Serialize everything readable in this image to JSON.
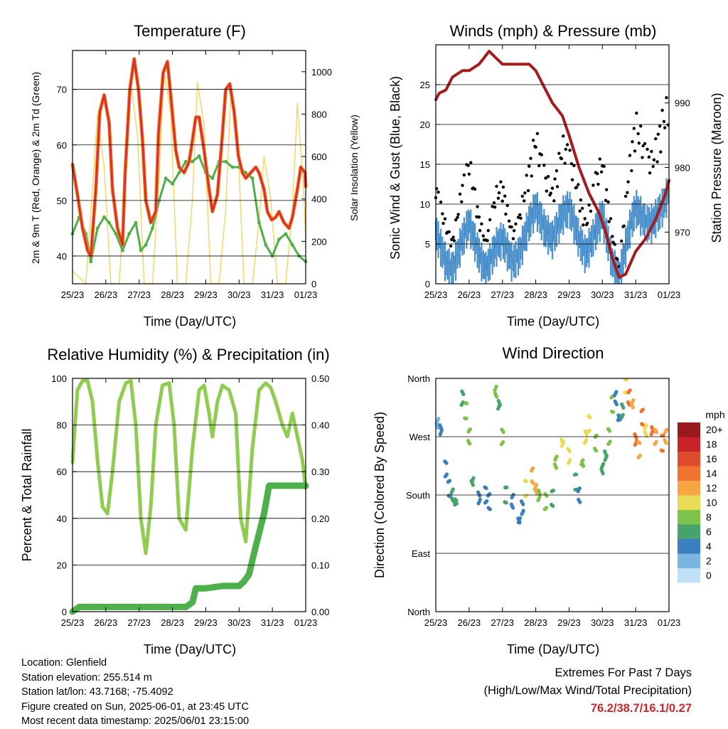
{
  "colors": {
    "temp_2m": "#d9322b",
    "temp_9m": "#f08a2a",
    "dewpoint": "#4fae48",
    "insolation": "#f5d76a",
    "wind": "#4a90cc",
    "gust": "#000000",
    "pressure": "#a51c1c",
    "rh": "#8fcc4f",
    "precip": "#4db04a",
    "extremes_text": "#c8282b"
  },
  "panels": {
    "temperature": {
      "title": "Temperature (F)",
      "ylabel_left": "2m & 9m T (Red, Orange) & 2m Td (Green)",
      "ylabel_right": "Solar Insolation (Yellow)",
      "xlabel": "Time (Day/UTC)"
    },
    "winds": {
      "title": "Winds (mph) & Pressure (mb)",
      "ylabel_left": "Sonic Wind & Gust (Blue, Black)",
      "ylabel_right": "Station Pressure (Maroon)",
      "xlabel": "Time (Day/UTC)"
    },
    "humidity": {
      "title": "Relative Humidity (%) & Precipitation (in)",
      "ylabel_left": "Percent & Total Rainfall",
      "xlabel": "Time (Day/UTC)"
    },
    "direction": {
      "title": "Wind Direction",
      "ylabel_left": "Direction (Colored By Speed)",
      "xlabel": "Time (Day/UTC)",
      "legend_unit": "mph"
    }
  },
  "footer": {
    "location": "Location: Glenfield",
    "elevation": "Station elevation: 255.514 m",
    "latlon": "Station lat/lon: 43.7168; -75.4092",
    "created": "Figure created on Sun, 2025-06-01, at 23:45 UTC",
    "latest": "Most recent data timestamp: 2025/06/01 23:15:00"
  },
  "extremes": {
    "heading": "Extremes For Past 7 Days",
    "subheading": "(High/Low/Max Wind/Total Precipitation)",
    "values": "76.2/38.7/16.1/0.27"
  },
  "chart_data": [
    {
      "type": "line",
      "name": "temperature",
      "x_ticks": [
        "25/23",
        "26/23",
        "27/23",
        "28/23",
        "29/23",
        "30/23",
        "31/23",
        "01/23"
      ],
      "xlim_days": [
        0,
        7
      ],
      "ylim": [
        35,
        77
      ],
      "y_ticks": [
        40,
        50,
        60,
        70
      ],
      "y2lim": [
        0,
        1100
      ],
      "y2_ticks": [
        0,
        200,
        400,
        600,
        800,
        1000
      ],
      "grid": true,
      "series": [
        {
          "name": "2m T",
          "x": [
            0,
            0.15,
            0.3,
            0.45,
            0.55,
            0.7,
            0.82,
            0.95,
            1.1,
            1.2,
            1.35,
            1.5,
            1.58,
            1.72,
            1.85,
            1.98,
            2.1,
            2.2,
            2.35,
            2.5,
            2.58,
            2.72,
            2.85,
            2.98,
            3.1,
            3.2,
            3.35,
            3.5,
            3.58,
            3.7,
            3.8,
            3.95,
            4.1,
            4.2,
            4.35,
            4.5,
            4.6,
            4.72,
            4.85,
            4.98,
            5.1,
            5.2,
            5.35,
            5.5,
            5.6,
            5.75,
            5.85,
            5.98,
            6.1,
            6.2,
            6.35,
            6.5,
            6.6,
            6.75,
            6.85,
            6.98,
            7
          ],
          "values": [
            56.5,
            51,
            45,
            41,
            40,
            52,
            66,
            69,
            64,
            52,
            45,
            42,
            55,
            70,
            75.5,
            70,
            61,
            50,
            46,
            48,
            62,
            73,
            75,
            67,
            59,
            56,
            55,
            57,
            60,
            65,
            65,
            59,
            52,
            48,
            51,
            62,
            70,
            71,
            66,
            58,
            55,
            54,
            55,
            56,
            55,
            52,
            48,
            46.5,
            47,
            48,
            46,
            45,
            47,
            52,
            56,
            55,
            52.5
          ]
        },
        {
          "name": "2m Td",
          "x": [
            0,
            0.2,
            0.4,
            0.55,
            0.75,
            0.95,
            1.1,
            1.3,
            1.5,
            1.7,
            1.9,
            2.05,
            2.2,
            2.4,
            2.6,
            2.8,
            3.0,
            3.2,
            3.4,
            3.6,
            3.8,
            4.0,
            4.2,
            4.4,
            4.6,
            4.8,
            5.0,
            5.2,
            5.4,
            5.6,
            5.8,
            6.0,
            6.2,
            6.4,
            6.6,
            6.8,
            7
          ],
          "values": [
            44,
            47,
            44,
            39,
            45,
            47,
            46,
            44,
            41,
            44,
            46,
            41,
            42,
            45,
            50,
            54,
            53,
            55,
            57,
            57,
            58,
            55,
            54,
            57,
            57,
            56,
            56,
            55,
            54,
            46,
            42,
            40,
            43,
            44,
            42,
            40,
            39
          ]
        },
        {
          "name": "Solar Insolation",
          "x": [
            0,
            0.4,
            0.6,
            0.75,
            0.95,
            1.15,
            1.4,
            1.6,
            1.75,
            1.95,
            2.15,
            2.4,
            2.6,
            2.75,
            2.95,
            3.15,
            3.4,
            3.6,
            3.75,
            3.95,
            4.15,
            4.4,
            4.6,
            4.75,
            4.95,
            5.15,
            5.4,
            5.6,
            5.75,
            5.95,
            6.15,
            6.4,
            6.6,
            6.75,
            6.95,
            7
          ],
          "values": [
            60,
            0,
            450,
            800,
            550,
            0,
            0,
            500,
            950,
            700,
            0,
            0,
            500,
            1000,
            800,
            0,
            0,
            400,
            950,
            750,
            0,
            0,
            350,
            900,
            700,
            0,
            0,
            300,
            600,
            400,
            0,
            0,
            350,
            850,
            400,
            200
          ]
        }
      ]
    },
    {
      "type": "line",
      "name": "winds",
      "x_ticks": [
        "25/23",
        "26/23",
        "27/23",
        "28/23",
        "29/23",
        "30/23",
        "31/23",
        "01/23"
      ],
      "xlim_days": [
        0,
        7
      ],
      "ylim": [
        0,
        30
      ],
      "y_ticks": [
        0,
        5,
        10,
        15,
        20,
        25
      ],
      "y2lim": [
        962,
        999
      ],
      "y2_ticks": [
        970,
        980,
        990
      ],
      "grid": true,
      "series": [
        {
          "name": "Sonic Wind",
          "x": [
            0,
            0.3,
            0.5,
            0.8,
            1.0,
            1.3,
            1.5,
            1.8,
            2.0,
            2.3,
            2.5,
            2.8,
            3.0,
            3.3,
            3.5,
            3.8,
            4.0,
            4.3,
            4.5,
            4.8,
            5.0,
            5.3,
            5.5,
            5.8,
            6.0,
            6.3,
            6.5,
            6.8,
            7
          ],
          "values": [
            7,
            3,
            2,
            6,
            8,
            4,
            2,
            5,
            6,
            3,
            4,
            8,
            10,
            7,
            6,
            9,
            10,
            6,
            4,
            7,
            9,
            3,
            1,
            7,
            10,
            8,
            8,
            10,
            12
          ]
        },
        {
          "name": "Gust",
          "x": [
            0,
            0.3,
            0.5,
            0.8,
            1.0,
            1.3,
            1.5,
            1.8,
            2.0,
            2.3,
            2.5,
            2.8,
            3.0,
            3.3,
            3.5,
            3.8,
            4.0,
            4.3,
            4.5,
            4.8,
            5.0,
            5.3,
            5.5,
            5.8,
            6.0,
            6.3,
            6.5,
            6.8,
            7
          ],
          "values": [
            12,
            7,
            5,
            12,
            15,
            8,
            5,
            11,
            12,
            6,
            8,
            14,
            18,
            13,
            11,
            17,
            16,
            11,
            7,
            13,
            15,
            6,
            2,
            14,
            20,
            16,
            15,
            20,
            22
          ]
        },
        {
          "name": "Station Pressure",
          "x": [
            0,
            0.1,
            0.3,
            0.5,
            0.8,
            1.0,
            1.3,
            1.6,
            1.8,
            2.0,
            2.2,
            2.5,
            2.8,
            3.0,
            3.2,
            3.5,
            3.8,
            4.0,
            4.3,
            4.6,
            4.9,
            5.1,
            5.3,
            5.5,
            5.7,
            6.0,
            6.3,
            6.6,
            6.9,
            7
          ],
          "values": [
            990.5,
            991.5,
            992,
            994,
            995,
            995,
            996,
            998,
            997,
            996,
            996,
            996,
            996,
            995,
            993,
            990,
            988,
            985,
            980,
            976,
            973,
            970,
            966,
            963,
            963.5,
            967,
            969,
            972,
            976,
            978
          ]
        }
      ]
    },
    {
      "type": "line",
      "name": "humidity",
      "x_ticks": [
        "25/23",
        "26/23",
        "27/23",
        "28/23",
        "29/23",
        "30/23",
        "31/23",
        "01/23"
      ],
      "xlim_days": [
        0,
        7
      ],
      "ylim": [
        0,
        100
      ],
      "y_ticks": [
        0,
        20,
        40,
        60,
        80,
        100
      ],
      "y2lim": [
        0,
        0.5
      ],
      "y2_ticks": [
        "0.00",
        "0.10",
        "0.20",
        "0.30",
        "0.40",
        "0.50"
      ],
      "grid": true,
      "series": [
        {
          "name": "RH",
          "x": [
            0,
            0.05,
            0.15,
            0.3,
            0.45,
            0.6,
            0.75,
            0.9,
            1.05,
            1.2,
            1.4,
            1.6,
            1.75,
            1.9,
            2.05,
            2.2,
            2.35,
            2.5,
            2.7,
            2.9,
            3.05,
            3.2,
            3.4,
            3.6,
            3.8,
            3.95,
            4.1,
            4.2,
            4.35,
            4.5,
            4.7,
            4.9,
            5.05,
            5.2,
            5.4,
            5.6,
            5.8,
            5.95,
            6.1,
            6.3,
            6.45,
            6.6,
            6.75,
            6.9,
            7
          ],
          "values": [
            64,
            75,
            95,
            99,
            99,
            90,
            65,
            45,
            42,
            60,
            90,
            98,
            99,
            80,
            40,
            25,
            45,
            80,
            97,
            98,
            80,
            40,
            35,
            70,
            95,
            97,
            85,
            75,
            90,
            97,
            95,
            85,
            40,
            30,
            70,
            95,
            98,
            96,
            90,
            80,
            75,
            85,
            75,
            65,
            53
          ]
        },
        {
          "name": "Total Precipitation",
          "x": [
            0,
            0.1,
            0.2,
            1.0,
            2.0,
            3.0,
            3.4,
            3.6,
            3.7,
            4.0,
            4.5,
            5.0,
            5.15,
            5.3,
            5.5,
            5.75,
            5.85,
            5.9,
            6.0,
            7
          ],
          "values": [
            0,
            0.005,
            0.01,
            0.01,
            0.01,
            0.01,
            0.01,
            0.02,
            0.05,
            0.05,
            0.055,
            0.055,
            0.065,
            0.08,
            0.14,
            0.21,
            0.25,
            0.27,
            0.27,
            0.27
          ]
        }
      ]
    },
    {
      "type": "scatter",
      "name": "direction",
      "x_ticks": [
        "25/23",
        "26/23",
        "27/23",
        "28/23",
        "29/23",
        "30/23",
        "31/23",
        "01/23"
      ],
      "xlim_days": [
        0,
        7
      ],
      "y_ticks": [
        "North",
        "East",
        "South",
        "West",
        "North"
      ],
      "ylim_deg": [
        0,
        360
      ],
      "grid": true,
      "legend": {
        "placement": "right",
        "labels": [
          "20+",
          "18",
          "16",
          "14",
          "12",
          "10",
          "8",
          "6",
          "4",
          "2",
          "0"
        ],
        "colors": [
          "#9a1b1e",
          "#c92228",
          "#df4b2d",
          "#f0722f",
          "#f8a544",
          "#e8dc55",
          "#7cc24b",
          "#45a36b",
          "#3a7fbf",
          "#7bb6e2",
          "#c2e0f5"
        ]
      },
      "series": [
        {
          "name": "Direction",
          "x": [
            0.05,
            0.15,
            0.3,
            0.4,
            0.5,
            0.6,
            0.8,
            0.9,
            1.0,
            1.1,
            1.3,
            1.5,
            1.6,
            1.8,
            1.9,
            2.0,
            2.1,
            2.3,
            2.5,
            2.6,
            2.7,
            2.9,
            3.0,
            3.1,
            3.3,
            3.5,
            3.6,
            3.8,
            4.0,
            4.2,
            4.3,
            4.4,
            4.5,
            4.6,
            4.8,
            5.0,
            5.1,
            5.2,
            5.3,
            5.4,
            5.5,
            5.6,
            5.7,
            5.8,
            5.9,
            6.0,
            6.1,
            6.2,
            6.3,
            6.5,
            6.6,
            6.8,
            6.9
          ],
          "values": [
            290,
            280,
            220,
            190,
            180,
            170,
            330,
            310,
            270,
            200,
            175,
            180,
            170,
            340,
            320,
            270,
            180,
            170,
            140,
            160,
            190,
            210,
            190,
            180,
            170,
            175,
            230,
            260,
            240,
            200,
            180,
            230,
            270,
            290,
            260,
            220,
            240,
            270,
            320,
            330,
            300,
            310,
            350,
            330,
            320,
            265,
            250,
            300,
            280,
            280,
            270,
            260,
            270
          ],
          "speeds": [
            2,
            3,
            3,
            4,
            5,
            6,
            6,
            8,
            7,
            5,
            4,
            4,
            3,
            7,
            6,
            8,
            5,
            4,
            3,
            4,
            9,
            12,
            11,
            8,
            7,
            6,
            8,
            10,
            9,
            6,
            4,
            7,
            9,
            10,
            8,
            5,
            6,
            7,
            8,
            4,
            3,
            5,
            10,
            13,
            12,
            14,
            12,
            13,
            10,
            14,
            12,
            13,
            12
          ]
        }
      ]
    }
  ]
}
